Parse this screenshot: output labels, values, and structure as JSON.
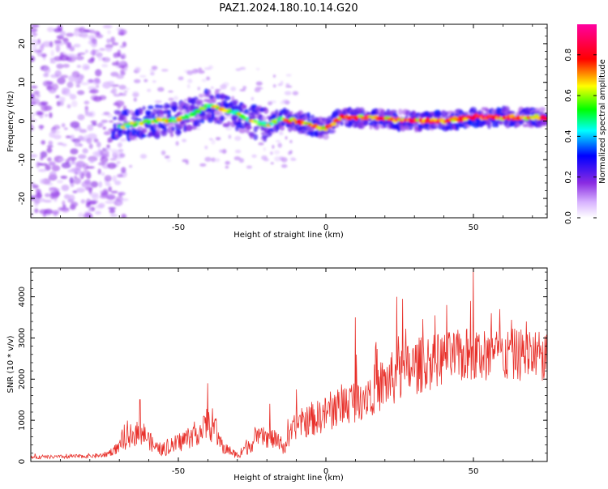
{
  "title": "PAZ1.2024.180.10.14.G20",
  "chart_data": [
    {
      "type": "heatmap",
      "xlabel": "Height of straight line (km)",
      "ylabel": "Frequency (Hz)",
      "xlim": [
        -100,
        75
      ],
      "ylim": [
        -25,
        25
      ],
      "x_ticks": [
        -50,
        0,
        50
      ],
      "x_tick_labels": [
        "-50",
        "0",
        "50"
      ],
      "y_ticks": [
        -20,
        -10,
        0,
        10,
        20
      ],
      "y_tick_labels": [
        "-20",
        "-10",
        "0",
        "10",
        "20"
      ],
      "colorbar": {
        "label": "Normalized spectral amplitude",
        "range": [
          0,
          0.95
        ],
        "ticks": [
          0.0,
          0.2,
          0.4,
          0.6,
          0.8
        ],
        "tick_labels": [
          "0.0",
          "0.2",
          "0.4",
          "0.6",
          "0.8"
        ],
        "colors": [
          "#ffffff",
          "#d8b4ff",
          "#8a2be2",
          "#0000ff",
          "#00ffff",
          "#00ff00",
          "#ffff00",
          "#ff0000",
          "#ff00a0"
        ]
      },
      "ridge_frequency": {
        "x": [
          -70,
          -60,
          -50,
          -45,
          -40,
          -35,
          -30,
          -25,
          -20,
          -15,
          -10,
          -5,
          0,
          5,
          10,
          20,
          30,
          40,
          50,
          60,
          70,
          75
        ],
        "y": [
          -1.5,
          0,
          0.5,
          2,
          4,
          3,
          2,
          0,
          -1,
          0.5,
          0,
          -1,
          -2,
          1,
          1,
          0.5,
          0,
          0,
          1,
          1,
          1,
          1
        ]
      },
      "grid": false
    },
    {
      "type": "line",
      "xlabel": "Height of straight line (km)",
      "ylabel": "SNR (10 * v/v)",
      "xlim": [
        -100,
        75
      ],
      "ylim": [
        0,
        4700
      ],
      "x_ticks": [
        -50,
        0,
        50
      ],
      "x_tick_labels": [
        "-50",
        "0",
        "50"
      ],
      "y_ticks": [
        0,
        1000,
        2000,
        3000,
        4000
      ],
      "y_tick_labels": [
        "0",
        "1000",
        "2000",
        "3000",
        "4000"
      ],
      "line_color": "#e8302a",
      "envelope": {
        "x": [
          -100,
          -85,
          -75,
          -70,
          -66,
          -62,
          -58,
          -55,
          -50,
          -45,
          -40,
          -38,
          -35,
          -30,
          -27,
          -22,
          -18,
          -14,
          -10,
          -5,
          0,
          5,
          10,
          15,
          20,
          25,
          30,
          35,
          40,
          45,
          50,
          55,
          60,
          65,
          70,
          75
        ],
        "mean": [
          100,
          120,
          150,
          350,
          650,
          700,
          350,
          280,
          450,
          650,
          850,
          800,
          350,
          150,
          350,
          600,
          550,
          350,
          900,
          1000,
          1150,
          1350,
          1500,
          1700,
          1900,
          2100,
          2300,
          2400,
          2500,
          2550,
          2600,
          2550,
          2550,
          2600,
          2600,
          2500
        ],
        "spread": [
          40,
          50,
          60,
          150,
          300,
          300,
          180,
          150,
          250,
          300,
          350,
          350,
          180,
          80,
          200,
          250,
          250,
          200,
          350,
          400,
          450,
          500,
          550,
          600,
          650,
          700,
          700,
          700,
          650,
          650,
          700,
          700,
          650,
          650,
          650,
          600
        ]
      },
      "spikes": [
        {
          "x": -63,
          "y": 1500
        },
        {
          "x": -40,
          "y": 1900
        },
        {
          "x": -19,
          "y": 1400
        },
        {
          "x": -10,
          "y": 1750
        },
        {
          "x": 10,
          "y": 3500
        },
        {
          "x": 17,
          "y": 2900
        },
        {
          "x": 24,
          "y": 4000
        },
        {
          "x": 26,
          "y": 3950
        },
        {
          "x": 37,
          "y": 3550
        },
        {
          "x": 41,
          "y": 3800
        },
        {
          "x": 49,
          "y": 3900
        },
        {
          "x": 50,
          "y": 4700
        },
        {
          "x": 56,
          "y": 3600
        },
        {
          "x": 59,
          "y": 3700
        },
        {
          "x": 68,
          "y": 3400
        }
      ],
      "grid": false
    }
  ]
}
